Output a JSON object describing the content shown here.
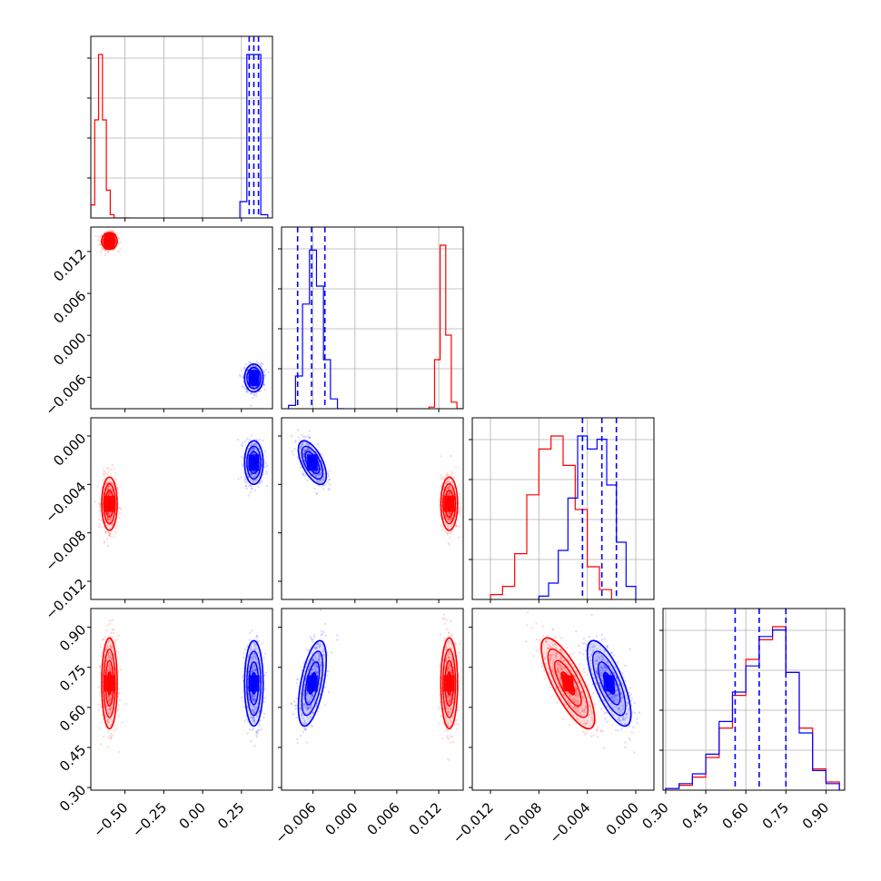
{
  "chart_data": {
    "type": "corner",
    "title": "",
    "colors": {
      "red": "#ff0000",
      "blue": "#0000ff",
      "grid": "#b0b0b0"
    },
    "parameters": [
      {
        "name": "",
        "range": [
          -0.72,
          0.45
        ],
        "ticks": [
          -0.5,
          -0.25,
          0.0,
          0.25
        ],
        "tick_labels": [
          "−0.50",
          "−0.25",
          "0.00",
          "0.25"
        ]
      },
      {
        "name": "",
        "range": [
          -0.0105,
          0.0155
        ],
        "ticks": [
          -0.006,
          0.0,
          0.006,
          0.012
        ],
        "tick_labels": [
          "−0.006",
          "0.000",
          "0.006",
          "0.012"
        ]
      },
      {
        "name": "",
        "range": [
          -0.0135,
          0.0015
        ],
        "ticks": [
          -0.012,
          -0.008,
          -0.004,
          0.0
        ],
        "tick_labels": [
          "−0.012",
          "−0.008",
          "−0.004",
          "0.000"
        ]
      },
      {
        "name": "",
        "range": [
          0.29,
          0.97
        ],
        "ticks": [
          0.3,
          0.45,
          0.6,
          0.75,
          0.9
        ],
        "tick_labels": [
          "0.30",
          "0.45",
          "0.60",
          "0.75",
          "0.90"
        ]
      }
    ],
    "series": [
      {
        "name": "",
        "color": "red",
        "means": [
          -0.6,
          0.0135,
          -0.0056,
          0.69
        ],
        "sds": [
          0.025,
          0.0006,
          0.0011,
          0.085
        ],
        "histograms": [
          {
            "edges": [
              -0.72,
              -0.695,
              -0.67,
              -0.645,
              -0.62,
              -0.595,
              -0.57,
              -0.545,
              -0.52,
              -0.495,
              -0.47
            ],
            "counts": [
              0.08,
              0.6,
              1.0,
              0.6,
              0.17,
              0.02,
              0.0,
              0.0,
              0.0,
              0.0
            ]
          },
          {
            "edges": [
              0.0106,
              0.0114,
              0.0122,
              0.013,
              0.0138,
              0.0146,
              0.0154
            ],
            "counts": [
              0.01,
              0.3,
              1.0,
              0.45,
              0.04,
              0.0
            ]
          },
          {
            "edges": [
              -0.012,
              -0.011,
              -0.01,
              -0.009,
              -0.008,
              -0.007,
              -0.006,
              -0.005,
              -0.004,
              -0.003,
              -0.002
            ],
            "counts": [
              0.03,
              0.08,
              0.28,
              0.64,
              0.92,
              1.0,
              0.82,
              0.55,
              0.2,
              0.06
            ]
          },
          {
            "edges": [
              0.3,
              0.35,
              0.4,
              0.45,
              0.5,
              0.55,
              0.6,
              0.65,
              0.7,
              0.75,
              0.8,
              0.85,
              0.9,
              0.95
            ],
            "counts": [
              0.01,
              0.03,
              0.08,
              0.2,
              0.38,
              0.58,
              0.8,
              0.92,
              1.0,
              0.72,
              0.38,
              0.13,
              0.05
            ]
          }
        ]
      },
      {
        "name": "",
        "color": "blue",
        "means": [
          0.33,
          -0.0061,
          -0.0022,
          0.69
        ],
        "sds": [
          0.03,
          0.001,
          0.0009,
          0.08
        ],
        "quantile_lines": [
          [
            0.3,
            0.33,
            0.36
          ],
          [
            -0.0082,
            -0.0062,
            -0.0043
          ],
          [
            -0.0044,
            -0.0028,
            -0.0016
          ],
          [
            0.56,
            0.65,
            0.75
          ]
        ],
        "histograms": [
          {
            "edges": [
              0.24,
              0.285,
              0.33,
              0.375,
              0.42
            ],
            "counts": [
              0.1,
              1.0,
              1.0,
              0.02
            ]
          },
          {
            "edges": [
              -0.0095,
              -0.0085,
              -0.0075,
              -0.0065,
              -0.0055,
              -0.0045,
              -0.0035,
              -0.0025,
              -0.0015
            ],
            "counts": [
              0.02,
              0.2,
              0.64,
              0.97,
              0.75,
              0.3,
              0.06,
              0.0
            ]
          },
          {
            "edges": [
              -0.008,
              -0.0072,
              -0.0064,
              -0.0056,
              -0.0048,
              -0.004,
              -0.0032,
              -0.0024,
              -0.0016,
              -0.0008,
              0.0
            ],
            "counts": [
              0.02,
              0.1,
              0.3,
              0.62,
              1.0,
              0.92,
              0.98,
              0.7,
              0.35,
              0.08
            ]
          },
          {
            "edges": [
              0.3,
              0.35,
              0.4,
              0.45,
              0.5,
              0.55,
              0.6,
              0.65,
              0.7,
              0.75,
              0.8,
              0.85,
              0.9,
              0.95
            ],
            "counts": [
              0.01,
              0.04,
              0.1,
              0.22,
              0.42,
              0.6,
              0.76,
              0.94,
              0.98,
              0.72,
              0.35,
              0.12,
              0.04
            ]
          }
        ]
      }
    ]
  }
}
